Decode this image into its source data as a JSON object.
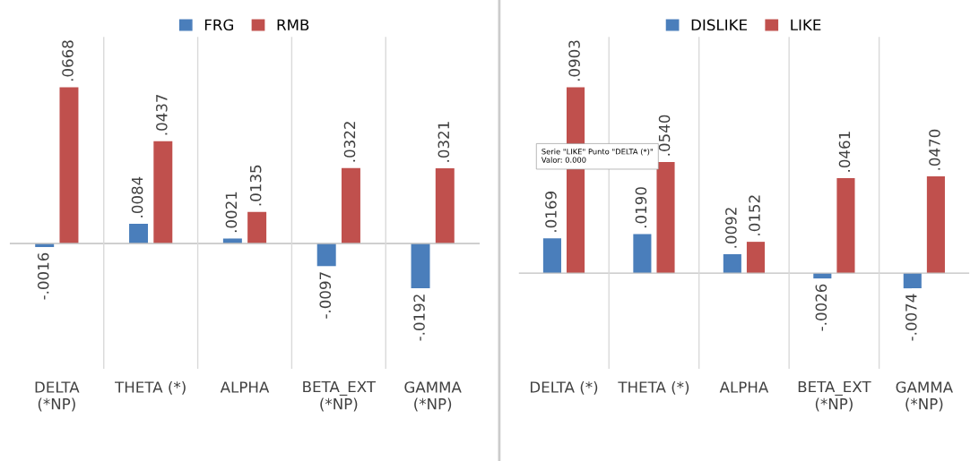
{
  "chart_data": [
    {
      "type": "bar",
      "categories": [
        "DELTA\n(*NP)",
        "THETA (*)",
        "ALPHA",
        "BETA_EXT\n(*NP)",
        "GAMMA\n(*NP)"
      ],
      "series": [
        {
          "name": "FRG",
          "color": "#4a7ebb",
          "values": [
            -0.0016,
            0.0084,
            0.0021,
            -0.0097,
            -0.0192
          ],
          "value_labels": [
            "-.0016",
            ".0084",
            ".0021",
            "-.0097",
            "-.0192"
          ]
        },
        {
          "name": "RMB",
          "color": "#c0504d",
          "values": [
            0.0668,
            0.0437,
            0.0135,
            0.0322,
            0.0321
          ],
          "value_labels": [
            ".0668",
            ".0437",
            ".0135",
            ".0322",
            ".0321"
          ]
        }
      ],
      "grid": "x",
      "legend": "top",
      "tick_labels": "x"
    },
    {
      "type": "bar",
      "categories": [
        "DELTA (*)",
        "THETA (*)",
        "ALPHA",
        "BETA_EXT\n(*NP)",
        "GAMMA\n(*NP)"
      ],
      "series": [
        {
          "name": "DISLIKE",
          "color": "#4a7ebb",
          "values": [
            0.0169,
            0.019,
            0.0092,
            -0.0026,
            -0.0074
          ],
          "value_labels": [
            ".0169",
            ".0190",
            ".0092",
            "-.0026",
            "-.0074"
          ]
        },
        {
          "name": "LIKE",
          "color": "#c0504d",
          "values": [
            0.0903,
            0.054,
            0.0152,
            0.0461,
            0.047
          ],
          "value_labels": [
            ".0903",
            ".0540",
            ".0152",
            ".0461",
            ".0470"
          ]
        }
      ],
      "annotations": [
        "Serie \"LIKE\" Punto \"DELTA (*)\"\nValor: 0.000"
      ],
      "grid": "x",
      "legend": "top",
      "tick_labels": "x"
    }
  ]
}
